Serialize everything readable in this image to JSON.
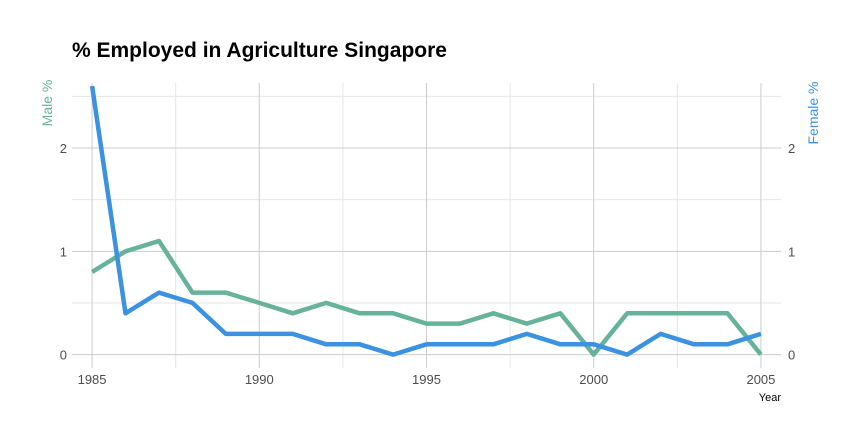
{
  "chart_data": {
    "type": "line",
    "title": "% Employed in Agriculture Singapore",
    "xlabel": "Year",
    "ylabel_left": "Male %",
    "ylabel_right": "Female %",
    "x": [
      1985,
      1986,
      1987,
      1988,
      1989,
      1990,
      1991,
      1992,
      1993,
      1994,
      1995,
      1996,
      1997,
      1998,
      1999,
      2000,
      2001,
      2002,
      2003,
      2004,
      2005
    ],
    "xlim": [
      1984.4,
      2005.6
    ],
    "ylim": [
      -0.13,
      2.63
    ],
    "x_ticks": [
      1985,
      1990,
      1995,
      2000,
      2005
    ],
    "y_ticks": [
      0,
      1,
      2
    ],
    "grid": true,
    "series": [
      {
        "name": "Male %",
        "axis": "left",
        "color": "#66b39a",
        "values": [
          0.8,
          1.0,
          1.1,
          0.6,
          0.6,
          0.5,
          0.4,
          0.5,
          0.4,
          0.4,
          0.3,
          0.3,
          0.4,
          0.3,
          0.4,
          0.0,
          0.4,
          0.4,
          0.4,
          0.4,
          0.0
        ]
      },
      {
        "name": "Female %",
        "axis": "right",
        "color": "#3a92e0",
        "values": [
          2.6,
          0.4,
          0.6,
          0.5,
          0.2,
          0.2,
          0.2,
          0.1,
          0.1,
          0.0,
          0.1,
          0.1,
          0.1,
          0.2,
          0.1,
          0.1,
          0.0,
          0.2,
          0.1,
          0.1,
          0.2
        ]
      }
    ]
  }
}
